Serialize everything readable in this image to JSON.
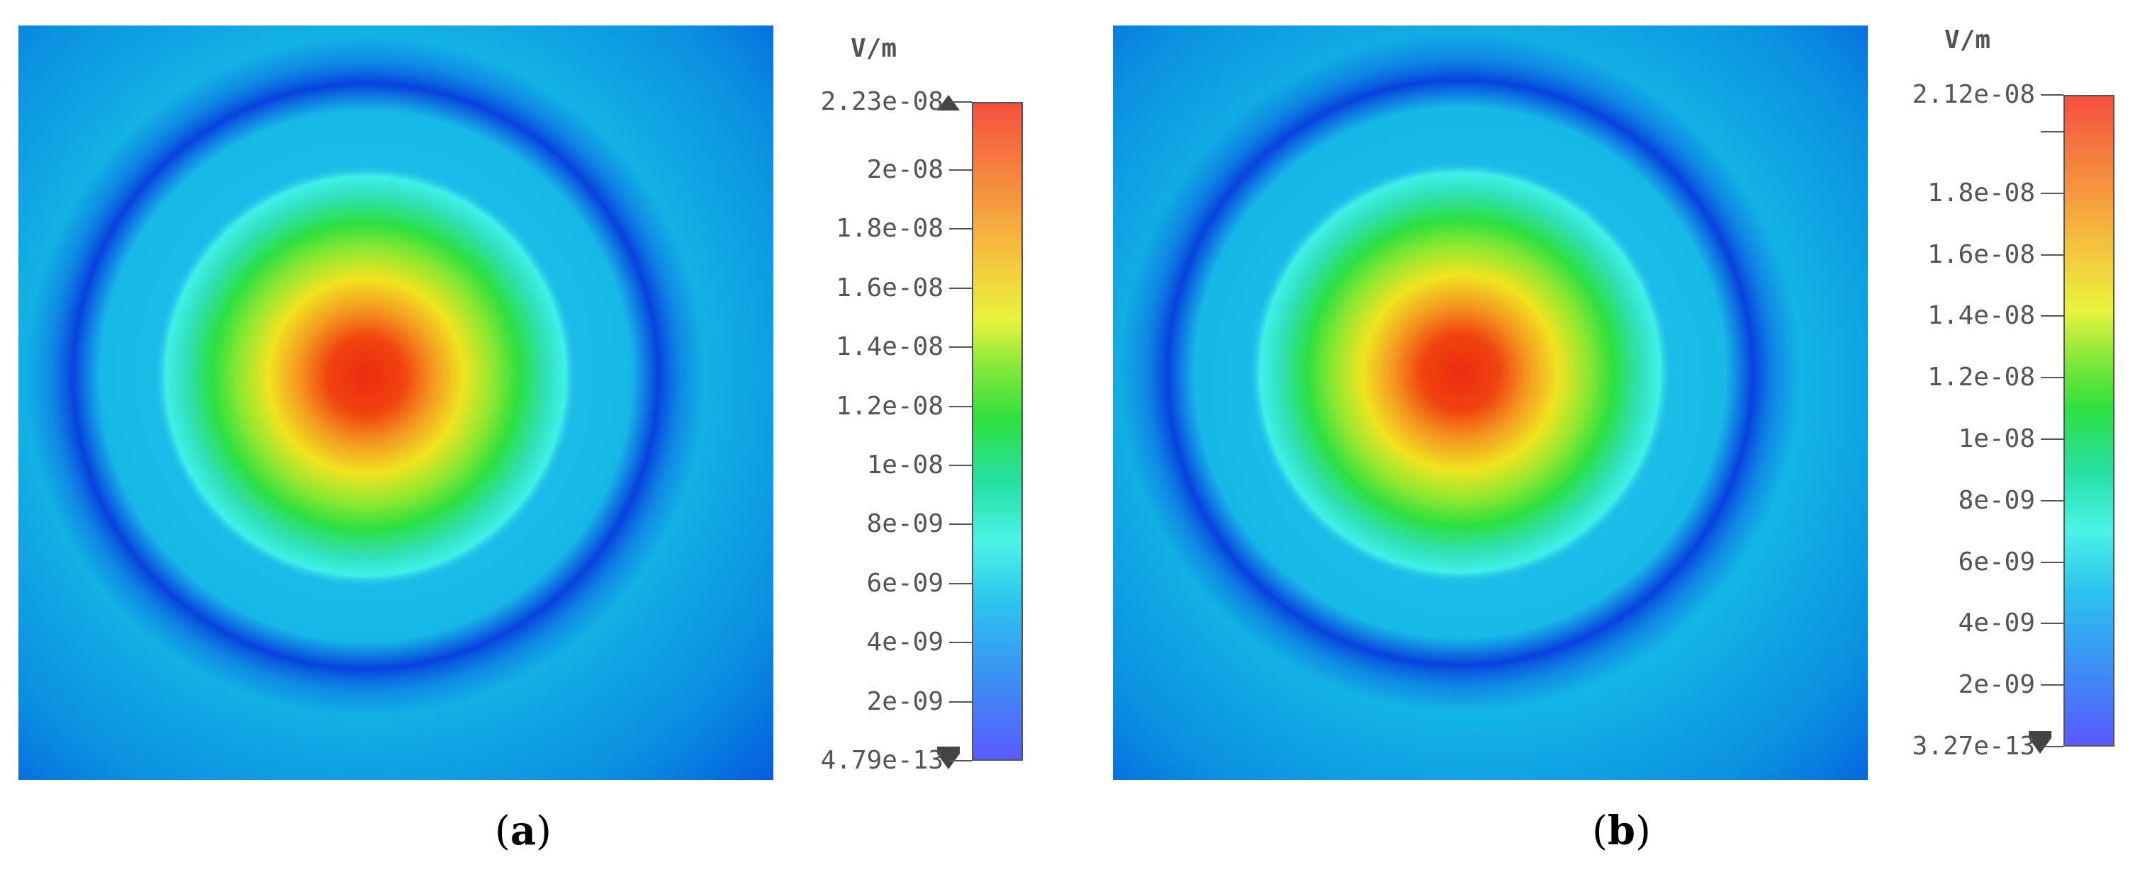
{
  "chart_data": [
    {
      "type": "heatmap",
      "panel_label": "a",
      "unit": "V/m",
      "colorbar": {
        "max_label": "2.23e-08",
        "min_label": "4.79e-13",
        "max": 2.23e-08,
        "min": 4.79e-13,
        "ticks": [
          {
            "label": "2.23e-08",
            "value": 2.23e-08
          },
          {
            "label": "2e-08",
            "value": 2e-08
          },
          {
            "label": "1.8e-08",
            "value": 1.8e-08
          },
          {
            "label": "1.6e-08",
            "value": 1.6e-08
          },
          {
            "label": "1.4e-08",
            "value": 1.4e-08
          },
          {
            "label": "1.2e-08",
            "value": 1.2e-08
          },
          {
            "label": "1e-08",
            "value": 1e-08
          },
          {
            "label": "8e-09",
            "value": 8e-09
          },
          {
            "label": "6e-09",
            "value": 6e-09
          },
          {
            "label": "4e-09",
            "value": 4e-09
          },
          {
            "label": "2e-09",
            "value": 2e-09
          },
          {
            "label": "4.79e-13",
            "value": 4.79e-13
          }
        ],
        "colors": [
          "#5a5aff",
          "#2cc4ee",
          "#4af4e6",
          "#2ee03e",
          "#e8f43c",
          "#f5943e",
          "#f5503f"
        ]
      }
    },
    {
      "type": "heatmap",
      "panel_label": "b",
      "unit": "V/m",
      "colorbar": {
        "max_label": "2.12e-08",
        "min_label": "3.27e-13",
        "max": 2.12e-08,
        "min": 3.27e-13,
        "ticks": [
          {
            "label": "2.12e-08",
            "value": 2.12e-08
          },
          {
            "label": "",
            "value": 2e-08
          },
          {
            "label": "1.8e-08",
            "value": 1.8e-08
          },
          {
            "label": "1.6e-08",
            "value": 1.6e-08
          },
          {
            "label": "1.4e-08",
            "value": 1.4e-08
          },
          {
            "label": "1.2e-08",
            "value": 1.2e-08
          },
          {
            "label": "1e-08",
            "value": 1e-08
          },
          {
            "label": "8e-09",
            "value": 8e-09
          },
          {
            "label": "6e-09",
            "value": 6e-09
          },
          {
            "label": "4e-09",
            "value": 4e-09
          },
          {
            "label": "2e-09",
            "value": 2e-09
          },
          {
            "label": "3.27e-13",
            "value": 3.27e-13
          }
        ],
        "colors": [
          "#5a5aff",
          "#2cc4ee",
          "#4af4e6",
          "#2ee03e",
          "#e8f43c",
          "#f5943e",
          "#f5503f"
        ]
      }
    }
  ],
  "captions": {
    "a": {
      "open": "(",
      "letter": "a",
      "close": ")"
    },
    "b": {
      "open": "(",
      "letter": "b",
      "close": ")"
    }
  }
}
